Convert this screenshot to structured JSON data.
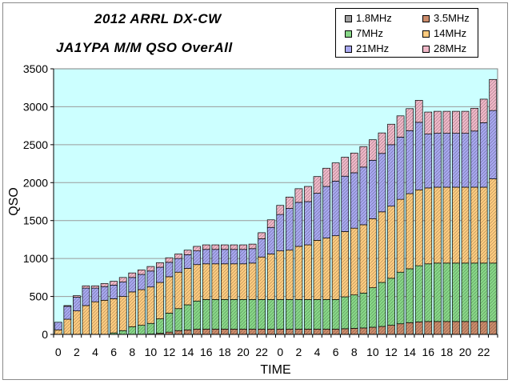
{
  "title_line1": "2012 ARRL DX-CW",
  "title_line2": "JA1YPA  M/M  QSO OverAll",
  "chart_data": {
    "type": "bar",
    "stacked": true,
    "ylabel": "QSO",
    "xlabel": "TIME",
    "ylim": [
      0,
      3500
    ],
    "yticks": [
      0,
      500,
      1000,
      1500,
      2000,
      2500,
      3000,
      3500
    ],
    "xtick_labels": [
      "0",
      "2",
      "4",
      "6",
      "8",
      "10",
      "12",
      "14",
      "16",
      "18",
      "20",
      "22",
      "0",
      "2",
      "4",
      "6",
      "8",
      "10",
      "12",
      "14",
      "16",
      "18",
      "20",
      "22"
    ],
    "grid": true,
    "legend_position": "top-right",
    "plot_background": "#ccffff",
    "categories": [
      "0",
      "1",
      "2",
      "3",
      "4",
      "5",
      "6",
      "7",
      "8",
      "9",
      "10",
      "11",
      "12",
      "13",
      "14",
      "15",
      "16",
      "17",
      "18",
      "19",
      "20",
      "21",
      "22",
      "23",
      "0",
      "1",
      "2",
      "3",
      "4",
      "5",
      "6",
      "7",
      "8",
      "9",
      "10",
      "11",
      "12",
      "13",
      "14",
      "15",
      "16",
      "17",
      "18",
      "19",
      "20",
      "21",
      "22",
      "23"
    ],
    "series": [
      {
        "name": "1.8MHz",
        "color": "#a0a0a0",
        "values": [
          0,
          0,
          0,
          0,
          0,
          0,
          0,
          0,
          0,
          0,
          0,
          0,
          0,
          0,
          0,
          0,
          0,
          0,
          0,
          0,
          0,
          0,
          0,
          0,
          0,
          0,
          0,
          0,
          0,
          0,
          0,
          0,
          0,
          0,
          0,
          0,
          0,
          0,
          0,
          0,
          0,
          0,
          0,
          0,
          0,
          0,
          0,
          0
        ]
      },
      {
        "name": "3.5MHz",
        "color": "#cc8c6c",
        "values": [
          0,
          0,
          0,
          0,
          0,
          0,
          0,
          0,
          0,
          0,
          5,
          15,
          30,
          50,
          60,
          70,
          70,
          70,
          70,
          70,
          70,
          70,
          70,
          70,
          70,
          70,
          70,
          70,
          70,
          70,
          70,
          75,
          80,
          85,
          95,
          105,
          120,
          140,
          155,
          165,
          170,
          170,
          170,
          170,
          170,
          170,
          170,
          170
        ]
      },
      {
        "name": "7MHz",
        "color": "#88d888",
        "values": [
          0,
          0,
          0,
          0,
          0,
          0,
          20,
          50,
          100,
          120,
          140,
          190,
          250,
          290,
          330,
          370,
          390,
          390,
          390,
          390,
          390,
          390,
          390,
          390,
          390,
          390,
          390,
          390,
          390,
          390,
          390,
          420,
          440,
          460,
          520,
          580,
          620,
          680,
          710,
          740,
          760,
          770,
          770,
          770,
          770,
          770,
          770,
          770
        ]
      },
      {
        "name": "14MHz",
        "color": "#ffcc80",
        "values": [
          60,
          200,
          310,
          380,
          430,
          450,
          450,
          450,
          460,
          470,
          480,
          480,
          480,
          480,
          480,
          480,
          470,
          470,
          470,
          470,
          470,
          480,
          560,
          600,
          640,
          650,
          700,
          720,
          780,
          810,
          840,
          860,
          880,
          900,
          910,
          930,
          950,
          960,
          990,
          1000,
          1000,
          1000,
          1000,
          1000,
          1000,
          1000,
          1000,
          1110
        ]
      },
      {
        "name": "21MHz",
        "color": "#a8a8f0",
        "values": [
          100,
          170,
          180,
          230,
          180,
          180,
          180,
          190,
          190,
          200,
          210,
          200,
          190,
          180,
          180,
          180,
          190,
          190,
          190,
          190,
          190,
          190,
          240,
          350,
          480,
          550,
          580,
          570,
          620,
          680,
          720,
          730,
          730,
          760,
          770,
          770,
          810,
          820,
          830,
          890,
          710,
          710,
          710,
          710,
          710,
          740,
          850,
          900
        ]
      },
      {
        "name": "28MHz",
        "color": "#f0b8c8",
        "values": [
          0,
          10,
          20,
          30,
          30,
          40,
          50,
          60,
          60,
          60,
          60,
          60,
          60,
          60,
          60,
          60,
          60,
          60,
          60,
          60,
          60,
          60,
          80,
          100,
          120,
          150,
          180,
          200,
          220,
          240,
          240,
          250,
          260,
          270,
          270,
          270,
          270,
          280,
          290,
          290,
          290,
          290,
          290,
          290,
          290,
          300,
          310,
          410
        ]
      }
    ]
  }
}
